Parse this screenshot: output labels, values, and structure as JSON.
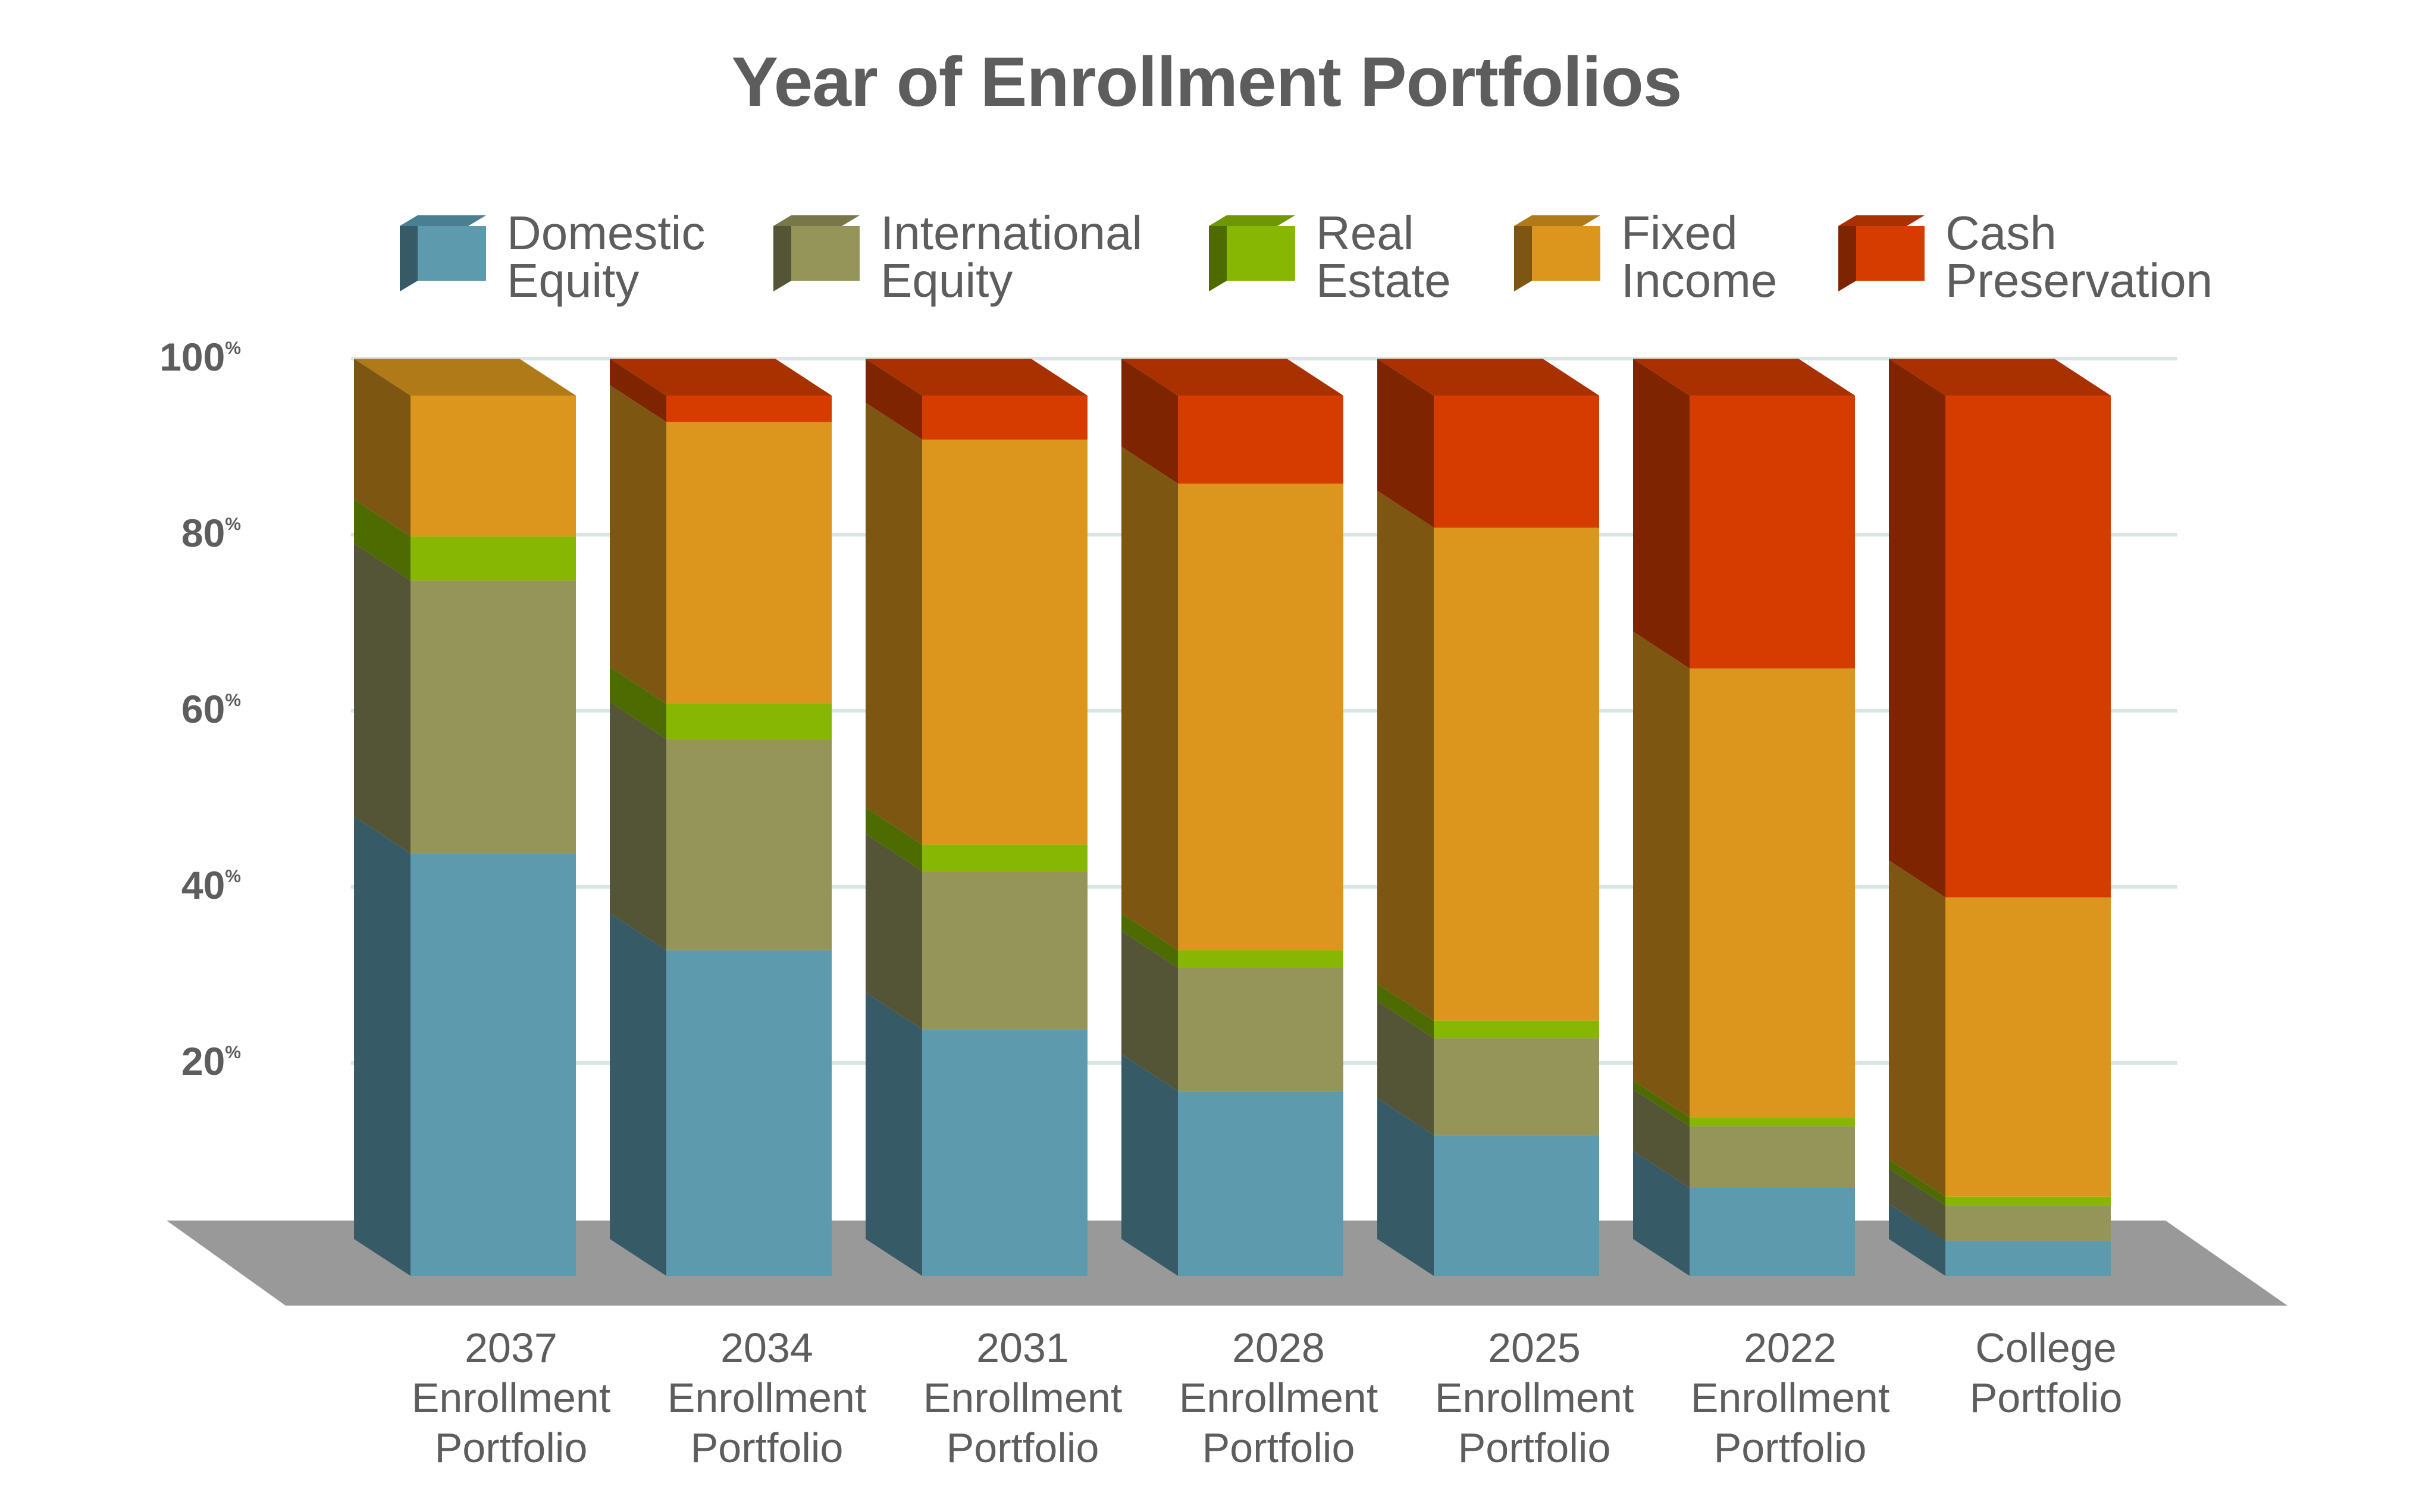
{
  "chart_data": {
    "type": "bar",
    "stacked": true,
    "style": "3d-stacked-100-percent",
    "title": "Year of Enrollment Portfolios",
    "xlabel": "",
    "ylabel": "",
    "ylim": [
      0,
      100
    ],
    "ytick_values": [
      20,
      40,
      60,
      80,
      100
    ],
    "ytick_suffix": "%",
    "grid": true,
    "legend_position": "top",
    "categories": [
      [
        "2037",
        "Enrollment",
        "Portfolio"
      ],
      [
        "2034",
        "Enrollment",
        "Portfolio"
      ],
      [
        "2031",
        "Enrollment",
        "Portfolio"
      ],
      [
        "2028",
        "Enrollment",
        "Portfolio"
      ],
      [
        "2025",
        "Enrollment",
        "Portfolio"
      ],
      [
        "2022",
        "Enrollment",
        "Portfolio"
      ],
      [
        "College",
        "Portfolio"
      ]
    ],
    "series": [
      {
        "name": [
          "Domestic",
          "Equity"
        ],
        "color": "#5e9aae",
        "side": "#375a67",
        "topc": "#4a7f92",
        "values": [
          48,
          37,
          28,
          21,
          16,
          10,
          4
        ]
      },
      {
        "name": [
          "International",
          "Equity"
        ],
        "color": "#95955a",
        "side": "#545537",
        "topc": "#77774a",
        "values": [
          31,
          24,
          18,
          14,
          11,
          7,
          4
        ]
      },
      {
        "name": [
          "Real",
          "Estate"
        ],
        "color": "#88b703",
        "side": "#4d6b00",
        "topc": "#6e9605",
        "values": [
          5,
          4,
          3,
          2,
          2,
          1,
          1
        ]
      },
      {
        "name": [
          "Fixed",
          "Income"
        ],
        "color": "#dc961d",
        "side": "#7d5712",
        "topc": "#b07a19",
        "values": [
          16,
          32,
          46,
          53,
          56,
          51,
          34
        ]
      },
      {
        "name": [
          "Cash",
          "Preservation"
        ],
        "color": "#d63c00",
        "side": "#7e2500",
        "topc": "#a93100",
        "values": [
          0,
          3,
          5,
          10,
          15,
          31,
          57
        ]
      }
    ],
    "floor_color": "#999999",
    "grid_color": "#dbe5e5",
    "label_color": "#5d5d5d"
  }
}
